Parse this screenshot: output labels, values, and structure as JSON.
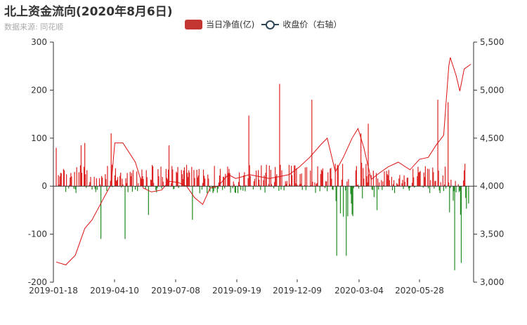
{
  "title": "北上资金流向(2020年8月6日)",
  "subtitle": "数据来源: 同花顺",
  "colors": {
    "inflow": "#dd2222",
    "outflow": "#228b22",
    "price_line": "#dd1111",
    "legend_bar": "#c23531",
    "legend_line": "#2f4554",
    "axis": "#333333"
  },
  "chart_data": {
    "type": "bar",
    "legend_placement": "top-center",
    "grid": false,
    "x_range": [
      "2019-01-18",
      "2020-08-06"
    ],
    "x_tick_labels": [
      "2019-01-18",
      "2019-04-10",
      "2019-07-08",
      "2019-09-19",
      "2019-12-09",
      "2020-03-04",
      "2020-05-28"
    ],
    "y_left": {
      "min": -200,
      "max": 300,
      "ticks": [
        "300",
        "200",
        "100",
        "0",
        "-100",
        "-200"
      ]
    },
    "y_right": {
      "min": 3000,
      "max": 5500,
      "ticks": [
        "5,500",
        "5,000",
        "4,500",
        "4,000",
        "3,500",
        "3,000"
      ]
    },
    "series": [
      {
        "name": "当日净值(亿)",
        "type": "bar",
        "axis": "left",
        "trading_day_count": 372,
        "notable_values": [
          {
            "date": "2019-01-18",
            "value": 80
          },
          {
            "date": "2019-02-21",
            "value": 85
          },
          {
            "date": "2019-02-26",
            "value": 90
          },
          {
            "date": "2019-03-20",
            "value": -110
          },
          {
            "date": "2019-04-03",
            "value": 110
          },
          {
            "date": "2019-04-22",
            "value": -110
          },
          {
            "date": "2019-05-24",
            "value": -60
          },
          {
            "date": "2019-06-21",
            "value": 85
          },
          {
            "date": "2019-07-23",
            "value": -70
          },
          {
            "date": "2019-10-08",
            "value": 147
          },
          {
            "date": "2019-11-19",
            "value": 213
          },
          {
            "date": "2020-01-02",
            "value": 180
          },
          {
            "date": "2020-02-05",
            "value": -145
          },
          {
            "date": "2020-02-18",
            "value": -145
          },
          {
            "date": "2020-03-09",
            "value": 110
          },
          {
            "date": "2020-03-19",
            "value": 130
          },
          {
            "date": "2020-06-22",
            "value": 180
          },
          {
            "date": "2020-07-06",
            "value": 175
          },
          {
            "date": "2020-07-15",
            "value": -175
          },
          {
            "date": "2020-07-24",
            "value": -160
          }
        ]
      },
      {
        "name": "收盘价（右轴）",
        "type": "line",
        "axis": "right",
        "points": [
          [
            "2019-01-18",
            3210
          ],
          [
            "2019-01-31",
            3180
          ],
          [
            "2019-02-13",
            3280
          ],
          [
            "2019-02-26",
            3560
          ],
          [
            "2019-03-08",
            3650
          ],
          [
            "2019-03-22",
            3850
          ],
          [
            "2019-04-03",
            4020
          ],
          [
            "2019-04-08",
            4450
          ],
          [
            "2019-04-19",
            4450
          ],
          [
            "2019-05-06",
            4250
          ],
          [
            "2019-05-17",
            3980
          ],
          [
            "2019-05-28",
            3940
          ],
          [
            "2019-06-11",
            3960
          ],
          [
            "2019-06-21",
            4050
          ],
          [
            "2019-07-03",
            4040
          ],
          [
            "2019-07-15",
            4000
          ],
          [
            "2019-07-26",
            3880
          ],
          [
            "2019-08-06",
            3810
          ],
          [
            "2019-08-16",
            3980
          ],
          [
            "2019-08-27",
            4000
          ],
          [
            "2019-09-10",
            4120
          ],
          [
            "2019-09-20",
            4080
          ],
          [
            "2019-10-09",
            4120
          ],
          [
            "2019-10-22",
            4100
          ],
          [
            "2019-11-05",
            4080
          ],
          [
            "2019-11-19",
            4100
          ],
          [
            "2019-12-02",
            4120
          ],
          [
            "2019-12-16",
            4200
          ],
          [
            "2019-12-30",
            4300
          ],
          [
            "2020-01-14",
            4430
          ],
          [
            "2020-01-23",
            4500
          ],
          [
            "2020-02-03",
            4150
          ],
          [
            "2020-02-14",
            4300
          ],
          [
            "2020-02-26",
            4500
          ],
          [
            "2020-03-05",
            4600
          ],
          [
            "2020-03-13",
            4400
          ],
          [
            "2020-03-23",
            4070
          ],
          [
            "2020-04-02",
            4130
          ],
          [
            "2020-04-15",
            4200
          ],
          [
            "2020-04-29",
            4250
          ],
          [
            "2020-05-15",
            4170
          ],
          [
            "2020-05-28",
            4280
          ],
          [
            "2020-06-09",
            4300
          ],
          [
            "2020-06-19",
            4420
          ],
          [
            "2020-06-30",
            4530
          ],
          [
            "2020-07-07",
            5250
          ],
          [
            "2020-07-09",
            5340
          ],
          [
            "2020-07-17",
            5150
          ],
          [
            "2020-07-22",
            4990
          ],
          [
            "2020-07-28",
            5220
          ],
          [
            "2020-08-06",
            5270
          ]
        ]
      }
    ]
  }
}
